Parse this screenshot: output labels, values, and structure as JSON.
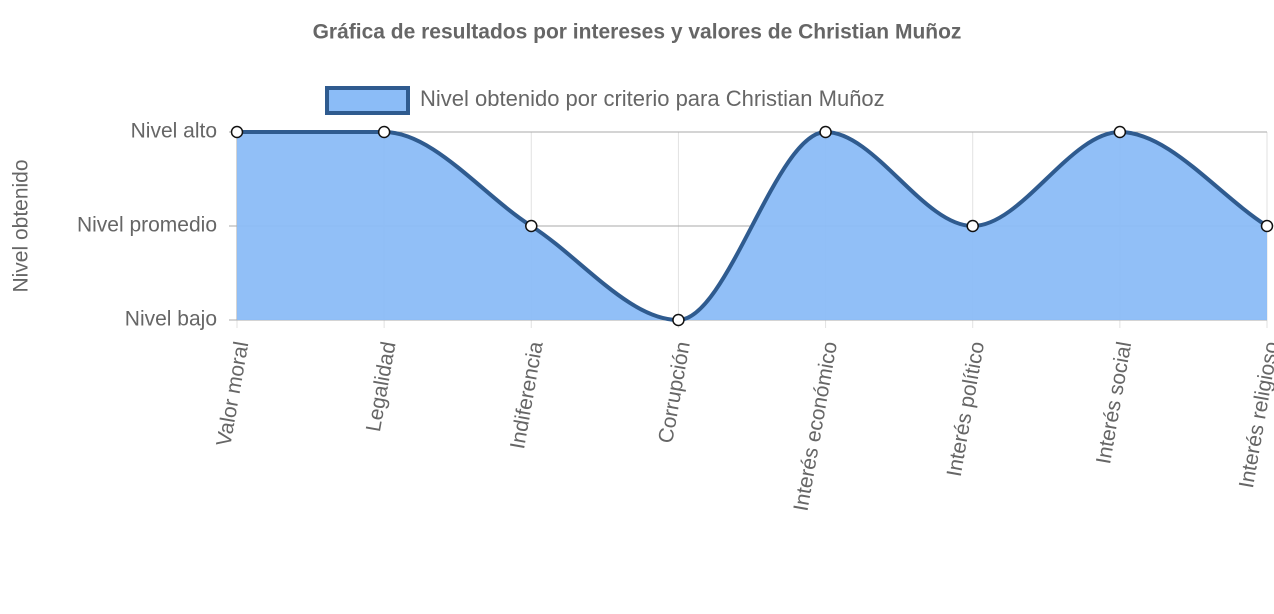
{
  "chart_data": {
    "type": "line",
    "title": "Gráfica de resultados por intereses y valores de Christian Muñoz",
    "y_label": "Nivel obtenido",
    "categories": [
      "Valor moral",
      "Legalidad",
      "Indiferencia",
      "Corrupción",
      "Interés económico",
      "Interés político",
      "Interés social",
      "Interés religioso"
    ],
    "series": [
      {
        "name": "Nivel obtenido por criterio para Christian Muñoz",
        "color": "#2f5b8f",
        "fill_color": "#8bbcf7",
        "values": [
          3,
          3,
          2,
          1,
          3,
          2,
          3,
          2
        ]
      }
    ],
    "ylim": [
      1,
      3
    ],
    "yticks": [
      {
        "value": 1,
        "label": "Nivel bajo"
      },
      {
        "value": 2,
        "label": "Nivel promedio"
      },
      {
        "value": 3,
        "label": "Nivel alto"
      }
    ],
    "grid": true,
    "legend": "top"
  }
}
